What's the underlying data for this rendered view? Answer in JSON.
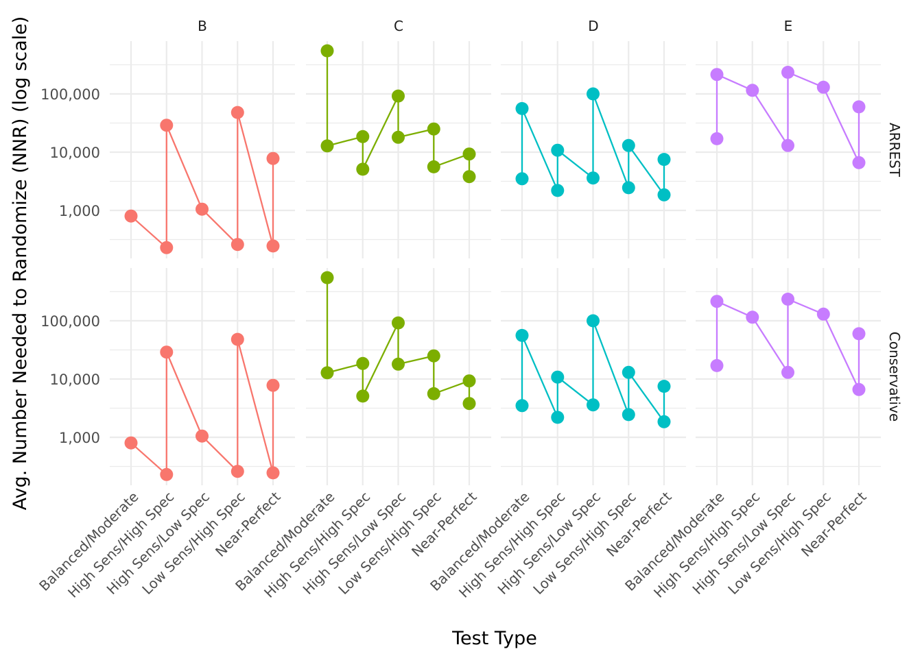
{
  "chart_data": {
    "type": "line",
    "title": "",
    "xlabel": "Test Type",
    "ylabel": "Avg. Number Needed to Randomize (NNR) (log scale)",
    "y_scale": "log10",
    "ylim": [
      160,
      700000
    ],
    "y_ticks": [
      1000,
      10000,
      100000
    ],
    "y_tick_labels": [
      "1,000",
      "10,000",
      "100,000"
    ],
    "grid": true,
    "legend": "none",
    "categories": [
      "Balanced/Moderate",
      "High Sens/High Spec",
      "High Sens/Low Spec",
      "Low Sens/High Spec",
      "Near-Perfect"
    ],
    "facet_columns": [
      "B",
      "C",
      "D",
      "E"
    ],
    "facet_rows": [
      "ARREST",
      "Conservative"
    ],
    "colors": {
      "B": "#F8766D",
      "C": "#7CAE00",
      "D": "#00BFC4",
      "E": "#C77CFF"
    },
    "panels": [
      {
        "facet": "B",
        "row": "ARREST",
        "path": [
          [
            "Balanced/Moderate",
            800
          ],
          [
            "High Sens/High Spec",
            230
          ],
          [
            "High Sens/High Spec",
            29000
          ],
          [
            "High Sens/Low Spec",
            1050
          ],
          [
            "Low Sens/High Spec",
            260
          ],
          [
            "Low Sens/High Spec",
            48000
          ],
          [
            "Near-Perfect",
            245
          ],
          [
            "Near-Perfect",
            7800
          ]
        ]
      },
      {
        "facet": "C",
        "row": "ARREST",
        "path": [
          [
            "Balanced/Moderate",
            550000
          ],
          [
            "Balanced/Moderate",
            12800
          ],
          [
            "High Sens/High Spec",
            18500
          ],
          [
            "High Sens/High Spec",
            5100
          ],
          [
            "High Sens/Low Spec",
            92000
          ],
          [
            "High Sens/Low Spec",
            18000
          ],
          [
            "Low Sens/High Spec",
            25000
          ],
          [
            "Low Sens/High Spec",
            5600
          ],
          [
            "Near-Perfect",
            9300
          ],
          [
            "Near-Perfect",
            3800
          ]
        ]
      },
      {
        "facet": "D",
        "row": "ARREST",
        "path": [
          [
            "Balanced/Moderate",
            3500
          ],
          [
            "Balanced/Moderate",
            56000
          ],
          [
            "High Sens/High Spec",
            2200
          ],
          [
            "High Sens/High Spec",
            10800
          ],
          [
            "High Sens/Low Spec",
            3600
          ],
          [
            "High Sens/Low Spec",
            100000
          ],
          [
            "Low Sens/High Spec",
            2450
          ],
          [
            "Low Sens/High Spec",
            13000
          ],
          [
            "Near-Perfect",
            1850
          ],
          [
            "Near-Perfect",
            7500
          ]
        ]
      },
      {
        "facet": "E",
        "row": "ARREST",
        "path": [
          [
            "Balanced/Moderate",
            17000
          ],
          [
            "Balanced/Moderate",
            215000
          ],
          [
            "High Sens/High Spec",
            115000
          ],
          [
            "High Sens/Low Spec",
            13000
          ],
          [
            "High Sens/Low Spec",
            235000
          ],
          [
            "Low Sens/High Spec",
            130000
          ],
          [
            "Near-Perfect",
            6600
          ],
          [
            "Near-Perfect",
            60000
          ]
        ]
      },
      {
        "facet": "B",
        "row": "Conservative",
        "path": [
          [
            "Balanced/Moderate",
            800
          ],
          [
            "High Sens/High Spec",
            230
          ],
          [
            "High Sens/High Spec",
            29000
          ],
          [
            "High Sens/Low Spec",
            1050
          ],
          [
            "Low Sens/High Spec",
            260
          ],
          [
            "Low Sens/High Spec",
            48000
          ],
          [
            "Near-Perfect",
            245
          ],
          [
            "Near-Perfect",
            7800
          ]
        ]
      },
      {
        "facet": "C",
        "row": "Conservative",
        "path": [
          [
            "Balanced/Moderate",
            550000
          ],
          [
            "Balanced/Moderate",
            12800
          ],
          [
            "High Sens/High Spec",
            18500
          ],
          [
            "High Sens/High Spec",
            5100
          ],
          [
            "High Sens/Low Spec",
            92000
          ],
          [
            "High Sens/Low Spec",
            18000
          ],
          [
            "Low Sens/High Spec",
            25000
          ],
          [
            "Low Sens/High Spec",
            5600
          ],
          [
            "Near-Perfect",
            9300
          ],
          [
            "Near-Perfect",
            3800
          ]
        ]
      },
      {
        "facet": "D",
        "row": "Conservative",
        "path": [
          [
            "Balanced/Moderate",
            3500
          ],
          [
            "Balanced/Moderate",
            56000
          ],
          [
            "High Sens/High Spec",
            2200
          ],
          [
            "High Sens/High Spec",
            10800
          ],
          [
            "High Sens/Low Spec",
            3600
          ],
          [
            "High Sens/Low Spec",
            100000
          ],
          [
            "Low Sens/High Spec",
            2450
          ],
          [
            "Low Sens/High Spec",
            13000
          ],
          [
            "Near-Perfect",
            1850
          ],
          [
            "Near-Perfect",
            7500
          ]
        ]
      },
      {
        "facet": "E",
        "row": "Conservative",
        "path": [
          [
            "Balanced/Moderate",
            17000
          ],
          [
            "Balanced/Moderate",
            215000
          ],
          [
            "High Sens/High Spec",
            115000
          ],
          [
            "High Sens/Low Spec",
            13000
          ],
          [
            "High Sens/Low Spec",
            235000
          ],
          [
            "Low Sens/High Spec",
            130000
          ],
          [
            "Near-Perfect",
            6600
          ],
          [
            "Near-Perfect",
            60000
          ]
        ]
      }
    ]
  }
}
